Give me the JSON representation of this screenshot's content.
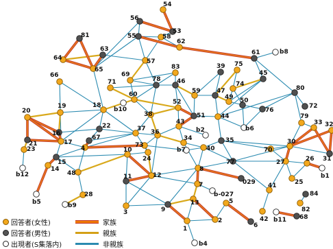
{
  "legend": {
    "node_female": "回答者(女性)",
    "node_male": "回答者(男性)",
    "node_outside": "出現者(S集落内)",
    "edge_family": "家族",
    "edge_relatives": "親族",
    "edge_nonrelatives": "非親族"
  },
  "colors": {
    "female": "#f2a81d",
    "male": "#505050",
    "outside": "#ffffff",
    "family": "#e8781a",
    "family_outline": "#c0392b",
    "relatives": "#d9a91c",
    "nonrelatives": "#2a8ab0"
  },
  "nodes": [
    {
      "id": "54",
      "type": "f"
    },
    {
      "id": "56",
      "type": "m"
    },
    {
      "id": "53",
      "type": "m"
    },
    {
      "id": "55",
      "type": "m"
    },
    {
      "id": "58",
      "type": "f"
    },
    {
      "id": "62",
      "type": "f"
    },
    {
      "id": "81",
      "type": "m"
    },
    {
      "id": "63",
      "type": "m"
    },
    {
      "id": "64",
      "type": "f"
    },
    {
      "id": "65",
      "type": "f"
    },
    {
      "id": "57",
      "type": "f"
    },
    {
      "id": "61",
      "type": "m"
    },
    {
      "id": "b8",
      "type": "o"
    },
    {
      "id": "66",
      "type": "f"
    },
    {
      "id": "69",
      "type": "f"
    },
    {
      "id": "39",
      "type": "m"
    },
    {
      "id": "75",
      "type": "f"
    },
    {
      "id": "45",
      "type": "m"
    },
    {
      "id": "83",
      "type": "f"
    },
    {
      "id": "71",
      "type": "f"
    },
    {
      "id": "78",
      "type": "m"
    },
    {
      "id": "46",
      "type": "m"
    },
    {
      "id": "80",
      "type": "m"
    },
    {
      "id": "72",
      "type": "m"
    },
    {
      "id": "60",
      "type": "f"
    },
    {
      "id": "59",
      "type": "f"
    },
    {
      "id": "47",
      "type": "m"
    },
    {
      "id": "74",
      "type": "f"
    },
    {
      "id": "49",
      "type": "f"
    },
    {
      "id": "50",
      "type": "m"
    },
    {
      "id": "76",
      "type": "m"
    },
    {
      "id": "18",
      "type": "f"
    },
    {
      "id": "b10",
      "type": "o"
    },
    {
      "id": "38",
      "type": "f"
    },
    {
      "id": "52",
      "type": "f"
    },
    {
      "id": "51",
      "type": "m"
    },
    {
      "id": "44",
      "type": "f"
    },
    {
      "id": "b6",
      "type": "o"
    },
    {
      "id": "79",
      "type": "f"
    },
    {
      "id": "33",
      "type": "f"
    },
    {
      "id": "32",
      "type": "f"
    },
    {
      "id": "20",
      "type": "f"
    },
    {
      "id": "19",
      "type": "f"
    },
    {
      "id": "16",
      "type": "m"
    },
    {
      "id": "22",
      "type": "m"
    },
    {
      "id": "43",
      "type": "f"
    },
    {
      "id": "b2",
      "type": "o"
    },
    {
      "id": "21",
      "type": "m"
    },
    {
      "id": "17",
      "type": "f"
    },
    {
      "id": "67",
      "type": "m"
    },
    {
      "id": "37",
      "type": "f"
    },
    {
      "id": "36",
      "type": "f"
    },
    {
      "id": "34",
      "type": "f"
    },
    {
      "id": "35",
      "type": "m"
    },
    {
      "id": "30",
      "type": "f"
    },
    {
      "id": "23",
      "type": "f"
    },
    {
      "id": "4",
      "type": "f"
    },
    {
      "id": "73",
      "type": "f"
    },
    {
      "id": "b7",
      "type": "o"
    },
    {
      "id": "40",
      "type": "f"
    },
    {
      "id": "70",
      "type": "f"
    },
    {
      "id": "31",
      "type": "m"
    },
    {
      "id": "15",
      "type": "m"
    },
    {
      "id": "24",
      "type": "f"
    },
    {
      "id": "27",
      "type": "f"
    },
    {
      "id": "26",
      "type": "f"
    },
    {
      "id": "b12",
      "type": "o"
    },
    {
      "id": "14",
      "type": "f"
    },
    {
      "id": "48",
      "type": "f"
    },
    {
      "id": "10",
      "type": "f"
    },
    {
      "id": "8",
      "type": "f"
    },
    {
      "id": "77",
      "type": "m"
    },
    {
      "id": "b1",
      "type": "o"
    },
    {
      "id": "11",
      "type": "m"
    },
    {
      "id": "12",
      "type": "f"
    },
    {
      "id": "029",
      "type": "m"
    },
    {
      "id": "25",
      "type": "f"
    },
    {
      "id": "41",
      "type": "f"
    },
    {
      "id": "7",
      "type": "f"
    },
    {
      "id": "b-027",
      "type": "o"
    },
    {
      "id": "b5",
      "type": "o"
    },
    {
      "id": "28",
      "type": "f"
    },
    {
      "id": "84",
      "type": "m"
    },
    {
      "id": "b9",
      "type": "o"
    },
    {
      "id": "9",
      "type": "m"
    },
    {
      "id": "13",
      "type": "f"
    },
    {
      "id": "82",
      "type": "f"
    },
    {
      "id": "3",
      "type": "f"
    },
    {
      "id": "5",
      "type": "f"
    },
    {
      "id": "2",
      "type": "f"
    },
    {
      "id": "1",
      "type": "f"
    },
    {
      "id": "6",
      "type": "m"
    },
    {
      "id": "42",
      "type": "f"
    },
    {
      "id": "b11",
      "type": "o"
    },
    {
      "id": "68",
      "type": "m"
    },
    {
      "id": "b4",
      "type": "o"
    }
  ],
  "edges": [
    {
      "a": "54",
      "b": "53",
      "t": "fam"
    },
    {
      "a": "56",
      "b": "53",
      "t": "fam"
    },
    {
      "a": "56",
      "b": "55",
      "t": "non"
    },
    {
      "a": "55",
      "b": "58",
      "t": "non"
    },
    {
      "a": "58",
      "b": "53",
      "t": "non"
    },
    {
      "a": "58",
      "b": "62",
      "t": "non"
    },
    {
      "a": "58",
      "b": "57",
      "t": "non"
    },
    {
      "a": "55",
      "b": "62",
      "t": "fam"
    },
    {
      "a": "62",
      "b": "61",
      "t": "fam"
    },
    {
      "a": "61",
      "b": "b8",
      "t": "non"
    },
    {
      "a": "55",
      "b": "65",
      "t": "non"
    },
    {
      "a": "55",
      "b": "57",
      "t": "non"
    },
    {
      "a": "56",
      "b": "65",
      "t": "non"
    },
    {
      "a": "63",
      "b": "65",
      "t": "fam"
    },
    {
      "a": "63",
      "b": "64",
      "t": "rel"
    },
    {
      "a": "81",
      "b": "64",
      "t": "fam"
    },
    {
      "a": "81",
      "b": "65",
      "t": "fam"
    },
    {
      "a": "64",
      "b": "65",
      "t": "fam"
    },
    {
      "a": "63",
      "b": "57",
      "t": "non"
    },
    {
      "a": "57",
      "b": "69",
      "t": "rel"
    },
    {
      "a": "66",
      "b": "17",
      "t": "non"
    },
    {
      "a": "69",
      "b": "60",
      "t": "non"
    },
    {
      "a": "71",
      "b": "60",
      "t": "rel"
    },
    {
      "a": "83",
      "b": "78",
      "t": "non"
    },
    {
      "a": "83",
      "b": "46",
      "t": "non"
    },
    {
      "a": "39",
      "b": "47",
      "t": "non"
    },
    {
      "a": "75",
      "b": "74",
      "t": "non"
    },
    {
      "a": "45",
      "b": "74",
      "t": "rel"
    },
    {
      "a": "45",
      "b": "49",
      "t": "non"
    },
    {
      "a": "61",
      "b": "45",
      "t": "non"
    },
    {
      "a": "61",
      "b": "80",
      "t": "non"
    },
    {
      "a": "80",
      "b": "72",
      "t": "non"
    },
    {
      "a": "80",
      "b": "79",
      "t": "non"
    },
    {
      "a": "80",
      "b": "76",
      "t": "non"
    },
    {
      "a": "80",
      "b": "44",
      "t": "non"
    },
    {
      "a": "78",
      "b": "46",
      "t": "non"
    },
    {
      "a": "78",
      "b": "60",
      "t": "non"
    },
    {
      "a": "46",
      "b": "59",
      "t": "rel"
    },
    {
      "a": "46",
      "b": "52",
      "t": "non"
    },
    {
      "a": "59",
      "b": "47",
      "t": "non"
    },
    {
      "a": "47",
      "b": "49",
      "t": "rel"
    },
    {
      "a": "74",
      "b": "49",
      "t": "non"
    },
    {
      "a": "49",
      "b": "50",
      "t": "non"
    },
    {
      "a": "50",
      "b": "76",
      "t": "non"
    },
    {
      "a": "50",
      "b": "b6",
      "t": "non"
    },
    {
      "a": "18",
      "b": "60",
      "t": "rel"
    },
    {
      "a": "18",
      "b": "b10",
      "t": "non"
    },
    {
      "a": "60",
      "b": "38",
      "t": "non"
    },
    {
      "a": "60",
      "b": "52",
      "t": "rel"
    },
    {
      "a": "38",
      "b": "52",
      "t": "rel"
    },
    {
      "a": "52",
      "b": "51",
      "t": "fam"
    },
    {
      "a": "51",
      "b": "44",
      "t": "non"
    },
    {
      "a": "44",
      "b": "b6",
      "t": "non"
    },
    {
      "a": "51",
      "b": "43",
      "t": "fam"
    },
    {
      "a": "43",
      "b": "b2",
      "t": "non"
    },
    {
      "a": "79",
      "b": "30",
      "t": "non"
    },
    {
      "a": "33",
      "b": "30",
      "t": "fam"
    },
    {
      "a": "32",
      "b": "30",
      "t": "fam"
    },
    {
      "a": "33",
      "b": "31",
      "t": "fam"
    },
    {
      "a": "32",
      "b": "31",
      "t": "fam"
    },
    {
      "a": "20",
      "b": "19",
      "t": "rel"
    },
    {
      "a": "20",
      "b": "16",
      "t": "fam"
    },
    {
      "a": "20",
      "b": "21",
      "t": "fam"
    },
    {
      "a": "20",
      "b": "17",
      "t": "fam"
    },
    {
      "a": "19",
      "b": "16",
      "t": "rel"
    },
    {
      "a": "19",
      "b": "18",
      "t": "non"
    },
    {
      "a": "16",
      "b": "17",
      "t": "fam"
    },
    {
      "a": "21",
      "b": "17",
      "t": "fam"
    },
    {
      "a": "21",
      "b": "23",
      "t": "rel"
    },
    {
      "a": "23",
      "b": "b12",
      "t": "non"
    },
    {
      "a": "16",
      "b": "22",
      "t": "non"
    },
    {
      "a": "22",
      "b": "37",
      "t": "non"
    },
    {
      "a": "18",
      "b": "22",
      "t": "non"
    },
    {
      "a": "18",
      "b": "37",
      "t": "non"
    },
    {
      "a": "38",
      "b": "37",
      "t": "non"
    },
    {
      "a": "37",
      "b": "36",
      "t": "non"
    },
    {
      "a": "36",
      "b": "43",
      "t": "non"
    },
    {
      "a": "36",
      "b": "34",
      "t": "rel"
    },
    {
      "a": "34",
      "b": "40",
      "t": "non"
    },
    {
      "a": "40",
      "b": "35",
      "t": "non"
    },
    {
      "a": "35",
      "b": "30",
      "t": "non"
    },
    {
      "a": "30",
      "b": "70",
      "t": "non"
    },
    {
      "a": "70",
      "b": "27",
      "t": "non"
    },
    {
      "a": "27",
      "b": "26",
      "t": "non"
    },
    {
      "a": "26",
      "b": "b1",
      "t": "fam"
    },
    {
      "a": "27",
      "b": "25",
      "t": "non"
    },
    {
      "a": "30",
      "b": "31",
      "t": "non"
    },
    {
      "a": "67",
      "b": "4",
      "t": "fam"
    },
    {
      "a": "4",
      "b": "73",
      "t": "fam"
    },
    {
      "a": "73",
      "b": "24",
      "t": "non"
    },
    {
      "a": "73",
      "b": "b7",
      "t": "non"
    },
    {
      "a": "15",
      "b": "14",
      "t": "fam"
    },
    {
      "a": "14",
      "b": "b5",
      "t": "fam"
    },
    {
      "a": "15",
      "b": "48",
      "t": "non"
    },
    {
      "a": "48",
      "b": "10",
      "t": "rel"
    },
    {
      "a": "48",
      "b": "28",
      "t": "non"
    },
    {
      "a": "28",
      "b": "b9",
      "t": "rel"
    },
    {
      "a": "10",
      "b": "11",
      "t": "non"
    },
    {
      "a": "10",
      "b": "12",
      "t": "fam"
    },
    {
      "a": "11",
      "b": "12",
      "t": "fam"
    },
    {
      "a": "12",
      "b": "8",
      "t": "non"
    },
    {
      "a": "8",
      "b": "7",
      "t": "fam"
    },
    {
      "a": "8",
      "b": "029",
      "t": "fam"
    },
    {
      "a": "7",
      "b": "b-027",
      "t": "non"
    },
    {
      "a": "7",
      "b": "13",
      "t": "rel"
    },
    {
      "a": "13",
      "b": "9",
      "t": "rel"
    },
    {
      "a": "9",
      "b": "1",
      "t": "fam"
    },
    {
      "a": "9",
      "b": "3",
      "t": "non"
    },
    {
      "a": "13",
      "b": "2",
      "t": "fam"
    },
    {
      "a": "1",
      "b": "2",
      "t": "non"
    },
    {
      "a": "2",
      "b": "5",
      "t": "non"
    },
    {
      "a": "5",
      "b": "6",
      "t": "fam"
    },
    {
      "a": "77",
      "b": "41",
      "t": "non"
    },
    {
      "a": "41",
      "b": "42",
      "t": "non"
    },
    {
      "a": "41",
      "b": "29",
      "t": "rel"
    },
    {
      "a": "29",
      "b": "8",
      "t": "non"
    },
    {
      "a": "77",
      "b": "8",
      "t": "non"
    },
    {
      "a": "77",
      "b": "40",
      "t": "non"
    },
    {
      "a": "77",
      "b": "30",
      "t": "non"
    },
    {
      "a": "77",
      "b": "27",
      "t": "non"
    },
    {
      "a": "84",
      "b": "82",
      "t": "non"
    },
    {
      "a": "b11",
      "b": "68",
      "t": "fam"
    },
    {
      "a": "12",
      "b": "3",
      "t": "non"
    },
    {
      "a": "11",
      "b": "9",
      "t": "non"
    },
    {
      "a": "1",
      "b": "b4",
      "t": "non"
    },
    {
      "a": "4",
      "b": "15",
      "t": "non"
    },
    {
      "a": "17",
      "b": "15",
      "t": "non"
    },
    {
      "a": "17",
      "b": "4",
      "t": "non"
    },
    {
      "a": "22",
      "b": "67",
      "t": "non"
    },
    {
      "a": "18",
      "b": "17",
      "t": "non"
    },
    {
      "a": "66",
      "b": "18",
      "t": "non"
    },
    {
      "a": "71",
      "b": "78",
      "t": "non"
    },
    {
      "a": "24",
      "b": "12",
      "t": "rel"
    },
    {
      "a": "24",
      "b": "10",
      "t": "non"
    },
    {
      "a": "36",
      "b": "12",
      "t": "non"
    },
    {
      "a": "34",
      "b": "8",
      "t": "non"
    },
    {
      "a": "43",
      "b": "34",
      "t": "non"
    },
    {
      "a": "44",
      "b": "35",
      "t": "non"
    },
    {
      "a": "b7",
      "b": "40",
      "t": "non"
    },
    {
      "a": "40",
      "b": "8",
      "t": "non"
    },
    {
      "a": "70",
      "b": "35",
      "t": "non"
    },
    {
      "a": "47",
      "b": "44",
      "t": "non"
    },
    {
      "a": "59",
      "b": "51",
      "t": "non"
    },
    {
      "a": "78",
      "b": "38",
      "t": "non"
    },
    {
      "a": "46",
      "b": "51",
      "t": "non"
    },
    {
      "a": "83",
      "b": "69",
      "t": "non"
    },
    {
      "a": "75",
      "b": "47",
      "t": "rel"
    },
    {
      "a": "39",
      "b": "59",
      "t": "non"
    },
    {
      "a": "45",
      "b": "44",
      "t": "non"
    },
    {
      "a": "74",
      "b": "50",
      "t": "non"
    },
    {
      "a": "37",
      "b": "4",
      "t": "non"
    },
    {
      "a": "37",
      "b": "24",
      "t": "non"
    },
    {
      "a": "38",
      "b": "36",
      "t": "rel"
    },
    {
      "a": "52",
      "b": "43",
      "t": "non"
    },
    {
      "a": "73",
      "b": "36",
      "t": "non"
    },
    {
      "a": "15",
      "b": "10",
      "t": "non"
    },
    {
      "a": "48",
      "b": "4",
      "t": "non"
    },
    {
      "a": "11",
      "b": "3",
      "t": "non"
    },
    {
      "a": "12",
      "b": "7",
      "t": "non"
    },
    {
      "a": "8",
      "b": "9",
      "t": "non"
    },
    {
      "a": "13",
      "b": "1",
      "t": "non"
    },
    {
      "a": "35",
      "b": "77",
      "t": "non"
    },
    {
      "a": "27",
      "b": "41",
      "t": "non"
    },
    {
      "a": "76",
      "b": "b6",
      "t": "non"
    },
    {
      "a": "79",
      "b": "33",
      "t": "non"
    },
    {
      "a": "26",
      "b": "25",
      "t": "non"
    },
    {
      "a": "30",
      "b": "27",
      "t": "fam"
    },
    {
      "a": "67",
      "b": "37",
      "t": "non"
    },
    {
      "a": "60",
      "b": "b10",
      "t": "non"
    },
    {
      "a": "69",
      "b": "78",
      "t": "non"
    },
    {
      "a": "57",
      "b": "78",
      "t": "non"
    },
    {
      "a": "65",
      "b": "18",
      "t": "non"
    }
  ]
}
